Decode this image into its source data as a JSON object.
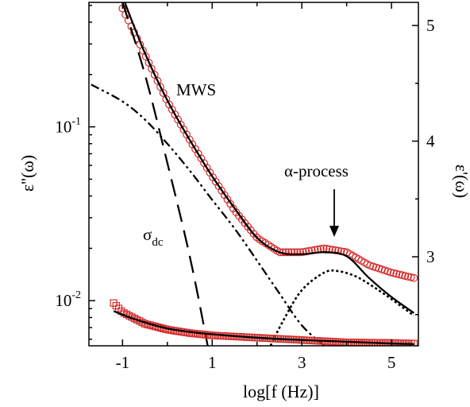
{
  "chart_data": {
    "type": "scatter",
    "xlabel": "log[f (Hz)]",
    "ylabel_left": "ε''(ω)",
    "ylabel_right": "ε'(ω)",
    "xlim": [
      -1.75,
      5.6
    ],
    "ylim_left": [
      0.0055,
      0.52
    ],
    "left_scale": "log",
    "ylim_right": [
      2.23,
      5.2
    ],
    "x_ticks": [
      -1,
      1,
      3,
      5
    ],
    "x_tick_labels": [
      "-1",
      "1",
      "3",
      "5"
    ],
    "y_left_ticks": [
      0.01,
      0.1
    ],
    "y_left_tick_labels": {
      "base": "10",
      "exponents": [
        "-2",
        "-1"
      ]
    },
    "y_right_ticks": [
      3,
      4,
      5
    ],
    "y_right_tick_labels": [
      "3",
      "4",
      "5"
    ],
    "annotations": {
      "mws": "MWS",
      "sigma": "σ",
      "sigma_sub": "dc",
      "alpha": "α-process"
    },
    "colors": {
      "markers": "#d42a2a",
      "lines": "#000000"
    },
    "series": [
      {
        "role": "loss data (circles)",
        "axis": "left",
        "style": "circle-markers",
        "x": [
          -1.0,
          -0.5,
          0.0,
          0.5,
          1.0,
          1.5,
          2.0,
          2.5,
          3.0,
          3.5,
          4.0,
          4.5,
          5.0,
          5.5
        ],
        "y": [
          0.48,
          0.26,
          0.14,
          0.084,
          0.052,
          0.033,
          0.023,
          0.019,
          0.019,
          0.02,
          0.019,
          0.016,
          0.0145,
          0.0135
        ]
      },
      {
        "role": "total fit",
        "axis": "left",
        "style": "solid",
        "x": [
          -0.95,
          -0.5,
          0.0,
          0.5,
          1.0,
          1.5,
          2.0,
          2.5,
          3.0,
          3.5,
          4.0,
          4.5,
          5.0,
          5.5
        ],
        "y": [
          0.52,
          0.265,
          0.142,
          0.084,
          0.052,
          0.034,
          0.023,
          0.019,
          0.0185,
          0.019,
          0.018,
          0.0135,
          0.0105,
          0.0085
        ]
      },
      {
        "role": "sigma_dc conduction",
        "axis": "left",
        "style": "dashed",
        "x": [
          -1.0,
          -0.5,
          0.0,
          0.5,
          0.9
        ],
        "y": [
          0.52,
          0.2,
          0.062,
          0.018,
          0.0055
        ]
      },
      {
        "role": "MWS",
        "axis": "left",
        "style": "dash-dot",
        "x": [
          -1.7,
          -1.0,
          -0.5,
          0.0,
          0.5,
          1.0,
          1.5,
          2.0,
          2.5,
          3.0,
          3.5
        ],
        "y": [
          0.175,
          0.14,
          0.11,
          0.08,
          0.056,
          0.038,
          0.026,
          0.017,
          0.011,
          0.0072,
          0.0055
        ]
      },
      {
        "role": "α-process",
        "axis": "left",
        "style": "dotted",
        "x": [
          2.3,
          2.6,
          3.0,
          3.5,
          3.8,
          4.2,
          4.6,
          5.0,
          5.5
        ],
        "y": [
          0.0055,
          0.0078,
          0.0115,
          0.0145,
          0.0148,
          0.0138,
          0.012,
          0.0102,
          0.0082
        ]
      },
      {
        "role": "permittivity data (squares)",
        "axis": "right",
        "style": "square-markers",
        "x": [
          -1.2,
          -1.0,
          -0.5,
          0.0,
          0.5,
          1.0,
          2.0,
          3.0,
          4.0,
          5.0,
          5.5
        ],
        "y": [
          2.6,
          2.52,
          2.42,
          2.37,
          2.34,
          2.32,
          2.3,
          2.28,
          2.26,
          2.255,
          2.25
        ]
      },
      {
        "role": "permittivity fit",
        "axis": "right",
        "style": "solid",
        "x": [
          -1.2,
          -0.8,
          -0.4,
          0.0,
          0.5,
          1.0,
          2.0,
          3.0,
          4.0,
          5.0,
          5.5
        ],
        "y": [
          2.53,
          2.47,
          2.42,
          2.38,
          2.35,
          2.33,
          2.3,
          2.28,
          2.265,
          2.25,
          2.245
        ]
      }
    ]
  }
}
